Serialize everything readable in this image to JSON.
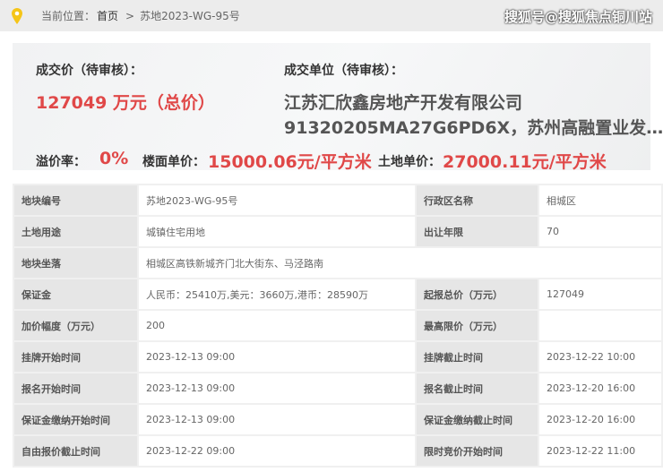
{
  "breadcrumb": {
    "prefix": "当前位置：",
    "home": "首页",
    "sep": ">",
    "current": "苏地2023-WG-95号"
  },
  "summary": {
    "price_label": "成交价（待审核）：",
    "price_value": "127049 万元（总价）",
    "buyer_label": "成交单位（待审核）：",
    "buyer_line1": "江苏汇欣鑫房地产开发有限公司",
    "buyer_line2": "91320205MA27G6PD6X，苏州高融置业发…",
    "premium_label": "溢价率：",
    "premium_value": "0%",
    "floor_label": "楼面单价：",
    "floor_value": "15000.06元/平方米",
    "land_label": "土地单价：",
    "land_value": "27000.11元/平方米"
  },
  "table": {
    "rows": [
      [
        "地块编号",
        "苏地2023-WG-95号",
        "行政区名称",
        "相城区"
      ],
      [
        "土地用途",
        "城镇住宅用地",
        "出让年限",
        "70"
      ],
      [
        "地块坐落",
        "相城区高铁新城齐门北大街东、马泾路南"
      ],
      [
        "保证金",
        "人民币：25410万,美元：3660万,港币：28590万",
        "起报总价（万元）",
        "127049"
      ],
      [
        "加价幅度（万元）",
        "200",
        "最高限价（万元）",
        ""
      ],
      [
        "挂牌开始时间",
        "2023-12-13 09:00",
        "挂牌截止时间",
        "2023-12-22 10:00"
      ],
      [
        "报名开始时间",
        "2023-12-13 09:00",
        "报名截止时间",
        "2023-12-20 16:00"
      ],
      [
        "保证金缴纳开始时间",
        "2023-12-13 09:00",
        "保证金缴纳截止时间",
        "2023-12-20 16:00"
      ],
      [
        "自由报价截止时间",
        "2023-12-22 09:00",
        "限时竞价开始时间",
        "2023-12-22 11:00"
      ]
    ]
  },
  "watermark": "搜狐号@搜狐焦点铜川站",
  "colors": {
    "accent": "#e04848",
    "pin": "#f5c518"
  }
}
